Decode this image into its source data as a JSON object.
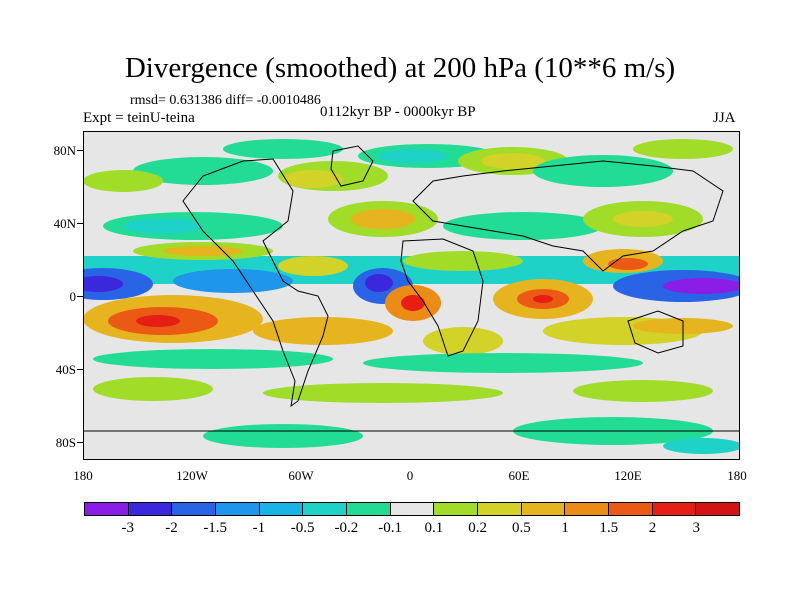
{
  "title": "Divergence (smoothed) at 200 hPa (10**6 m/s)",
  "stats": "rmsd= 0.631386 diff= -0.0010486",
  "expt": "Expt = teinU-teina",
  "period": "0112kyr BP - 0000kyr BP",
  "season": "JJA",
  "map": {
    "lat_labels": [
      "80N",
      "40N",
      "0",
      "40S",
      "80S"
    ],
    "lon_labels": [
      "180",
      "120W",
      "60W",
      "0",
      "60E",
      "120E",
      "180"
    ]
  },
  "colorbar": {
    "labels": [
      "-3",
      "-2",
      "-1.5",
      "-1",
      "-0.5",
      "-0.2",
      "-0.1",
      "0.1",
      "0.2",
      "0.5",
      "1",
      "1.5",
      "2",
      "3"
    ],
    "colors": [
      "#8a1ee6",
      "#3c28dc",
      "#2a64e6",
      "#1e96eb",
      "#18b4e6",
      "#1ed2c8",
      "#22dc96",
      "#e6e6e6",
      "#a0dc28",
      "#d2d228",
      "#e6b41e",
      "#eb8c14",
      "#eb5a14",
      "#e61e14",
      "#d21414"
    ]
  },
  "accent_colors": {
    "frame": "#000000",
    "background": "#ffffff",
    "land_outline": "#000000"
  }
}
